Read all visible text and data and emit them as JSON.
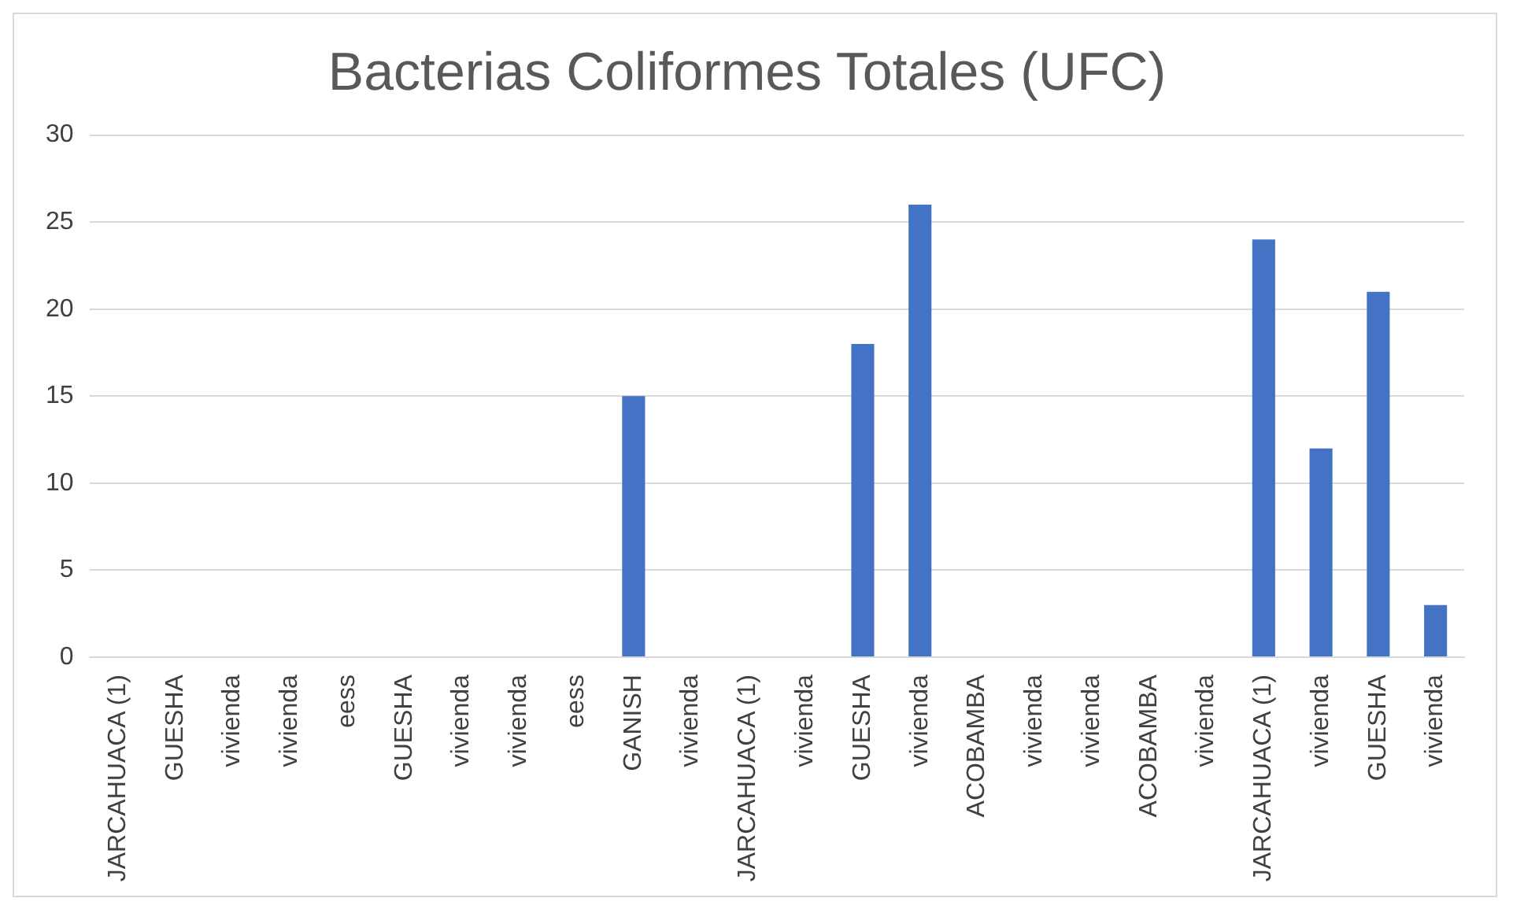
{
  "chart_data": {
    "type": "bar",
    "title": "Bacterias Coliformes Totales (UFC)",
    "categories": [
      "JARCAHUACA (1)",
      "GUESHA",
      "vivienda",
      "vivienda",
      "eess",
      "GUESHA",
      "vivienda",
      "vivienda",
      "eess",
      "GANISH",
      "vivienda",
      "JARCAHUACA (1)",
      "vivienda",
      "GUESHA",
      "vivienda",
      "ACOBAMBA",
      "vivienda",
      "vivienda",
      "ACOBAMBA",
      "vivienda",
      "JARCAHUACA (1)",
      "vivienda",
      "GUESHA",
      "vivienda"
    ],
    "values": [
      0,
      0,
      0,
      0,
      0,
      0,
      0,
      0,
      0,
      15,
      0,
      0,
      0,
      18,
      26,
      0,
      0,
      0,
      0,
      0,
      24,
      12,
      21,
      3
    ],
    "color": "#4472c4",
    "ylim": [
      0,
      30
    ],
    "yticks": [
      0,
      5,
      10,
      15,
      20,
      25,
      30
    ],
    "grid": "y",
    "legend": false
  }
}
